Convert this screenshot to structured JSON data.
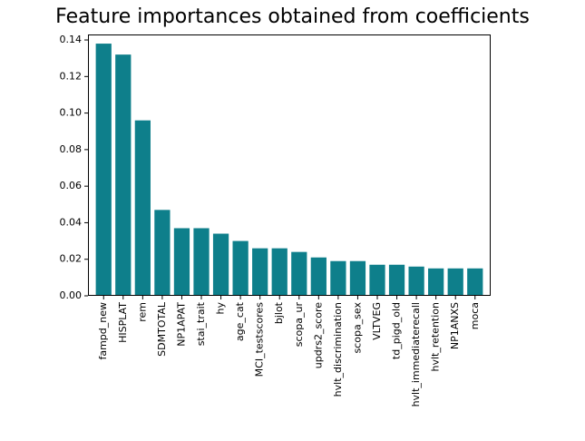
{
  "chart_data": {
    "type": "bar",
    "title": "Feature importances obtained from coefficients",
    "xlabel": "",
    "ylabel": "",
    "categories": [
      "fampd_new",
      "HISPLAT",
      "rem",
      "SDMTOTAL",
      "NP1APAT",
      "stai_trait",
      "hy",
      "age_cat",
      "MCI_testscores",
      "bjlot",
      "scopa_ur",
      "updrs2_score",
      "hvlt_discrimination",
      "scopa_sex",
      "VLTVEG",
      "td_pigd_old",
      "hvlt_immediaterecall",
      "hvlt_retention",
      "NP1ANXS",
      "moca"
    ],
    "values": [
      0.138,
      0.132,
      0.096,
      0.047,
      0.037,
      0.037,
      0.034,
      0.03,
      0.026,
      0.026,
      0.024,
      0.021,
      0.019,
      0.019,
      0.017,
      0.017,
      0.016,
      0.015,
      0.015,
      0.015
    ],
    "ylim": [
      0,
      0.143
    ],
    "yticks": [
      "0.00",
      "0.02",
      "0.04",
      "0.06",
      "0.08",
      "0.10",
      "0.12",
      "0.14"
    ],
    "bar_color": "#0e7f8b",
    "grid": false
  }
}
